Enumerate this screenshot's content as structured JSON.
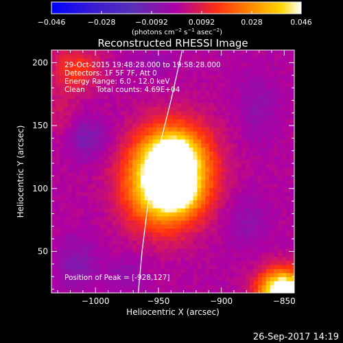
{
  "colorbar": {
    "ticks": [
      "−0.046",
      "−0.028",
      "−0.0092",
      "0.0092",
      "0.028",
      "0.046"
    ],
    "unit_parts": [
      "(photons cm",
      "−2",
      " s",
      "−1",
      " asec",
      "−2",
      ")"
    ]
  },
  "chart_data": {
    "type": "heatmap",
    "title": "Reconstructed RHESSI Image",
    "xlabel": "Heliocentric X (arcsec)",
    "ylabel": "Heliocentric Y (arcsec)",
    "x_ticks": [
      "−1000",
      "−950",
      "−900",
      "−850"
    ],
    "y_ticks": [
      "50",
      "100",
      "150",
      "200"
    ],
    "xlim": [
      -1035,
      -842
    ],
    "ylim": [
      17,
      210
    ],
    "value_range": [
      -0.046,
      0.046
    ],
    "colormap": [
      "#0000ff",
      "#3b1bd2",
      "#5b2fb7",
      "#ad00a4",
      "#ff2f12",
      "#ff8a00",
      "#ffd700",
      "#ffffff"
    ],
    "info_lines": [
      "29-Oct-2015 19:48:28.000 to 19:58:28.000",
      "Detectors: 1F 5F 7F, Att 0",
      "Energy Range: 6.0 - 12.0 keV",
      "Clean     Total counts: 4.69E+04"
    ],
    "peak_label": "Position of Peak = [-928,127]",
    "sources": [
      {
        "x": -942,
        "y": 110,
        "sx": 21,
        "sy": 25,
        "amp": 0.07,
        "theta": -0.25
      },
      {
        "x": -938,
        "y": 126,
        "sx": 11,
        "sy": 11,
        "amp": 0.022,
        "theta": 0
      },
      {
        "x": -935,
        "y": 96,
        "sx": 11,
        "sy": 9,
        "amp": 0.016,
        "theta": 0
      },
      {
        "x": -851,
        "y": 18,
        "sx": 13,
        "sy": 12,
        "amp": 0.06,
        "theta": 0
      },
      {
        "x": -1015,
        "y": 195,
        "sx": 14,
        "sy": 12,
        "amp": 0.015,
        "theta": 0
      },
      {
        "x": -1026,
        "y": 155,
        "sx": 8,
        "sy": 18,
        "amp": 0.006,
        "theta": 0
      },
      {
        "x": -1008,
        "y": 140,
        "sx": 13,
        "sy": 11,
        "amp": -0.01,
        "theta": 0
      },
      {
        "x": -1015,
        "y": 40,
        "sx": 12,
        "sy": 14,
        "amp": -0.008,
        "theta": 0
      },
      {
        "x": -975,
        "y": 32,
        "sx": 10,
        "sy": 10,
        "amp": -0.006,
        "theta": 0
      },
      {
        "x": -880,
        "y": 75,
        "sx": 11,
        "sy": 14,
        "amp": -0.006,
        "theta": 0
      },
      {
        "x": -870,
        "y": 165,
        "sx": 10,
        "sy": 18,
        "amp": -0.006,
        "theta": 0
      },
      {
        "x": -950,
        "y": 200,
        "sx": 10,
        "sy": 6,
        "amp": -0.005,
        "theta": 0
      }
    ],
    "limb_curve": [
      [
        -931,
        210
      ],
      [
        -940,
        170
      ],
      [
        -950,
        130
      ],
      [
        -958,
        90
      ],
      [
        -963,
        50
      ],
      [
        -966,
        17
      ]
    ]
  },
  "footer": {
    "date": "26-Sep-2017 14:19"
  }
}
